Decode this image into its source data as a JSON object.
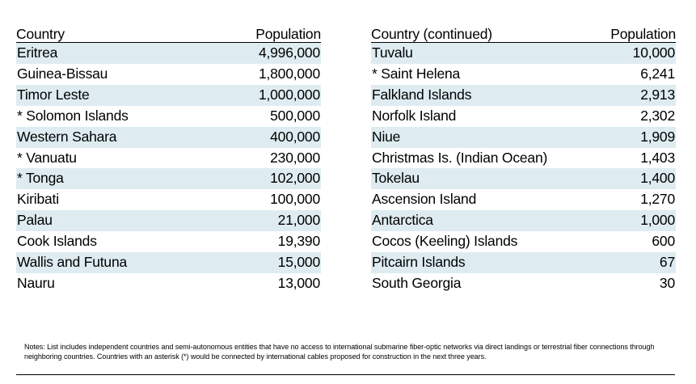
{
  "left_table": {
    "header_country": "Country",
    "header_population": "Population",
    "rows": [
      {
        "country": "Eritrea",
        "population": "4,996,000"
      },
      {
        "country": "Guinea-Bissau",
        "population": "1,800,000"
      },
      {
        "country": "Timor Leste",
        "population": "1,000,000"
      },
      {
        "country": "* Solomon Islands",
        "population": "500,000"
      },
      {
        "country": "Western Sahara",
        "population": "400,000"
      },
      {
        "country": "* Vanuatu",
        "population": "230,000"
      },
      {
        "country": "* Tonga",
        "population": "102,000"
      },
      {
        "country": "Kiribati",
        "population": "100,000"
      },
      {
        "country": "Palau",
        "population": "21,000"
      },
      {
        "country": "Cook Islands",
        "population": "19,390"
      },
      {
        "country": "Wallis and Futuna",
        "population": "15,000"
      },
      {
        "country": "Nauru",
        "population": "13,000"
      }
    ]
  },
  "right_table": {
    "header_country": "Country (continued)",
    "header_population": "Population",
    "rows": [
      {
        "country": "Tuvalu",
        "population": "10,000"
      },
      {
        "country": "* Saint Helena",
        "population": "6,241"
      },
      {
        "country": "Falkland Islands",
        "population": "2,913"
      },
      {
        "country": "Norfolk Island",
        "population": "2,302"
      },
      {
        "country": "Niue",
        "population": "1,909"
      },
      {
        "country": "Christmas Is. (Indian Ocean)",
        "population": "1,403"
      },
      {
        "country": "Tokelau",
        "population": "1,400"
      },
      {
        "country": "Ascension Island",
        "population": "1,270"
      },
      {
        "country": "Antarctica",
        "population": "1,000"
      },
      {
        "country": "Cocos (Keeling) Islands",
        "population": "600"
      },
      {
        "country": "Pitcairn Islands",
        "population": "67"
      },
      {
        "country": "South Georgia",
        "population": "30"
      }
    ]
  },
  "notes": "Notes:  List includes independent countries and semi-autonomous entities that have no access to international submarine fiber-optic networks via direct landings or terrestrial fiber connections through neighboring countries.  Countries with an asterisk (*) would be connected by international cables proposed for construction in the next three years.",
  "colors": {
    "row_shade": "#deecf1",
    "rule": "#000000"
  }
}
